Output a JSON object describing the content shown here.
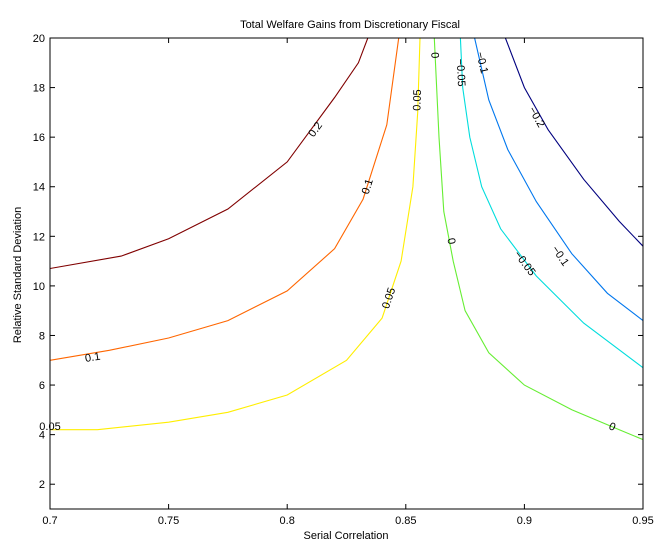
{
  "chart_data": {
    "type": "contour",
    "title": "Total Welfare Gains from Discretionary Fiscal",
    "xlabel": "Serial Correlation",
    "ylabel": "Relative Standard Deviation",
    "xlim": [
      0.7,
      0.95
    ],
    "ylim": [
      1,
      20
    ],
    "x_ticks": [
      0.7,
      0.75,
      0.8,
      0.85,
      0.9,
      0.95
    ],
    "x_tick_labels": [
      "0.7",
      "0.75",
      "0.8",
      "0.85",
      "0.9",
      "0.95"
    ],
    "y_ticks": [
      2,
      4,
      6,
      8,
      10,
      12,
      14,
      16,
      18,
      20
    ],
    "y_tick_labels": [
      "2",
      "4",
      "6",
      "8",
      "10",
      "12",
      "14",
      "16",
      "18",
      "20"
    ],
    "grid": false,
    "legend": "none",
    "contours": [
      {
        "level": 0.2,
        "color": "#800000",
        "points": [
          [
            0.7,
            10.7
          ],
          [
            0.73,
            11.2
          ],
          [
            0.75,
            11.9
          ],
          [
            0.775,
            13.1
          ],
          [
            0.8,
            15.0
          ],
          [
            0.81,
            16.3
          ],
          [
            0.82,
            17.6
          ],
          [
            0.83,
            19.0
          ],
          [
            0.834,
            20.0
          ]
        ],
        "labels": [
          {
            "text": "0.2",
            "x": 0.812,
            "y": 16.3
          }
        ]
      },
      {
        "level": 0.1,
        "color": "#ff6600",
        "points": [
          [
            0.7,
            7.0
          ],
          [
            0.725,
            7.4
          ],
          [
            0.75,
            7.9
          ],
          [
            0.775,
            8.6
          ],
          [
            0.8,
            9.8
          ],
          [
            0.82,
            11.5
          ],
          [
            0.832,
            13.5
          ],
          [
            0.842,
            16.5
          ],
          [
            0.847,
            20.0
          ]
        ],
        "labels": [
          {
            "text": "0.1",
            "x": 0.718,
            "y": 7.1
          },
          {
            "text": "0.1",
            "x": 0.834,
            "y": 14.0
          }
        ]
      },
      {
        "level": 0.05,
        "color": "#ffee00",
        "points": [
          [
            0.7,
            4.2
          ],
          [
            0.72,
            4.2
          ],
          [
            0.75,
            4.5
          ],
          [
            0.775,
            4.9
          ],
          [
            0.8,
            5.6
          ],
          [
            0.825,
            7.0
          ],
          [
            0.84,
            8.7
          ],
          [
            0.848,
            11.0
          ],
          [
            0.853,
            14.0
          ],
          [
            0.855,
            17.0
          ],
          [
            0.856,
            20.0
          ]
        ],
        "labels": [
          {
            "text": "0.05",
            "x": 0.7,
            "y": 4.3
          },
          {
            "text": "0.05",
            "x": 0.843,
            "y": 9.5
          },
          {
            "text": "0.05",
            "x": 0.855,
            "y": 17.5
          }
        ]
      },
      {
        "level": 0,
        "color": "#66ee33",
        "points": [
          [
            0.862,
            20.0
          ],
          [
            0.864,
            16.0
          ],
          [
            0.866,
            13.0
          ],
          [
            0.87,
            11.0
          ],
          [
            0.875,
            9.0
          ],
          [
            0.885,
            7.3
          ],
          [
            0.9,
            6.0
          ],
          [
            0.92,
            5.0
          ],
          [
            0.94,
            4.2
          ],
          [
            0.95,
            3.8
          ]
        ],
        "labels": [
          {
            "text": "0",
            "x": 0.862,
            "y": 19.3
          },
          {
            "text": "0",
            "x": 0.869,
            "y": 11.8
          },
          {
            "text": "0",
            "x": 0.937,
            "y": 4.3
          }
        ]
      },
      {
        "level": -0.05,
        "color": "#00dddd",
        "points": [
          [
            0.873,
            20.0
          ],
          [
            0.874,
            18.0
          ],
          [
            0.877,
            16.0
          ],
          [
            0.882,
            14.0
          ],
          [
            0.89,
            12.3
          ],
          [
            0.905,
            10.4
          ],
          [
            0.925,
            8.5
          ],
          [
            0.95,
            6.7
          ]
        ],
        "labels": [
          {
            "text": "-0.05",
            "x": 0.873,
            "y": 18.6
          },
          {
            "text": "-0.05",
            "x": 0.9,
            "y": 10.9
          }
        ]
      },
      {
        "level": -0.1,
        "color": "#0077ee",
        "points": [
          [
            0.879,
            20.0
          ],
          [
            0.885,
            17.5
          ],
          [
            0.893,
            15.5
          ],
          [
            0.905,
            13.4
          ],
          [
            0.92,
            11.3
          ],
          [
            0.935,
            9.7
          ],
          [
            0.95,
            8.6
          ]
        ],
        "labels": [
          {
            "text": "-0.1",
            "x": 0.882,
            "y": 19.0
          },
          {
            "text": "-0.1",
            "x": 0.915,
            "y": 11.2
          }
        ]
      },
      {
        "level": -0.2,
        "color": "#00007f",
        "points": [
          [
            0.892,
            20.0
          ],
          [
            0.9,
            18.0
          ],
          [
            0.91,
            16.3
          ],
          [
            0.925,
            14.3
          ],
          [
            0.94,
            12.6
          ],
          [
            0.95,
            11.6
          ]
        ],
        "labels": [
          {
            "text": "-0.2",
            "x": 0.905,
            "y": 16.8
          }
        ]
      }
    ]
  }
}
